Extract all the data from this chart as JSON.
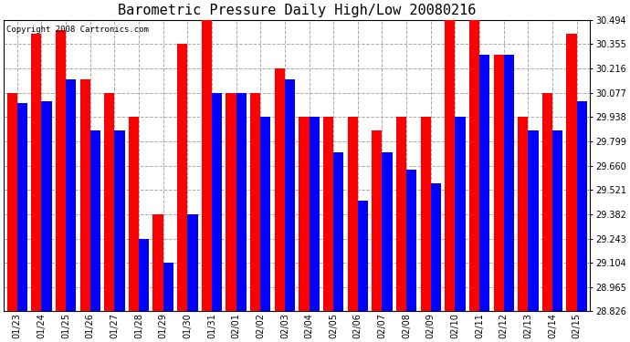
{
  "title": "Barometric Pressure Daily High/Low 20080216",
  "copyright": "Copyright 2008 Cartronics.com",
  "dates": [
    "01/23",
    "01/24",
    "01/25",
    "01/26",
    "01/27",
    "01/28",
    "01/29",
    "01/30",
    "01/31",
    "02/01",
    "02/02",
    "02/03",
    "02/04",
    "02/05",
    "02/06",
    "02/07",
    "02/08",
    "02/09",
    "02/10",
    "02/11",
    "02/12",
    "02/13",
    "02/14",
    "02/15"
  ],
  "highs": [
    30.077,
    30.416,
    30.433,
    30.155,
    30.077,
    29.938,
    29.382,
    30.355,
    30.494,
    30.077,
    30.077,
    30.216,
    29.938,
    29.938,
    29.938,
    29.86,
    29.938,
    29.938,
    30.494,
    30.494,
    30.294,
    29.938,
    30.077,
    30.416
  ],
  "lows": [
    30.016,
    30.03,
    30.155,
    29.86,
    29.86,
    29.243,
    29.104,
    29.382,
    30.077,
    30.077,
    29.938,
    30.155,
    29.938,
    29.738,
    29.46,
    29.738,
    29.638,
    29.56,
    29.938,
    30.294,
    30.294,
    29.86,
    29.86,
    30.03
  ],
  "high_color": "#FF0000",
  "low_color": "#0000FF",
  "bg_color": "#FFFFFF",
  "grid_color": "#AAAAAA",
  "ylim_min": 28.826,
  "ylim_max": 30.494,
  "yticks": [
    28.826,
    28.965,
    29.104,
    29.243,
    29.382,
    29.521,
    29.66,
    29.799,
    29.938,
    30.077,
    30.216,
    30.355,
    30.494
  ],
  "title_fontsize": 11,
  "copyright_fontsize": 6.5,
  "tick_fontsize": 7
}
